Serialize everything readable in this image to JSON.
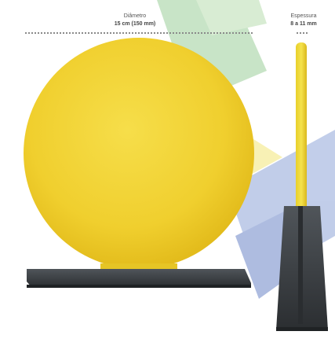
{
  "diameter": {
    "title": "Diâmetro",
    "value": "15 cm (150 mm)"
  },
  "thickness": {
    "title": "Espessura",
    "value": "8 a 11 mm"
  },
  "colors": {
    "disc": "#f2d232",
    "disc_edge": "#e0be1e",
    "base": "#3b3f43",
    "watermark_green": "#9ccf9a",
    "watermark_yellow": "#f3e77a",
    "watermark_blue": "#8fa5d8"
  }
}
